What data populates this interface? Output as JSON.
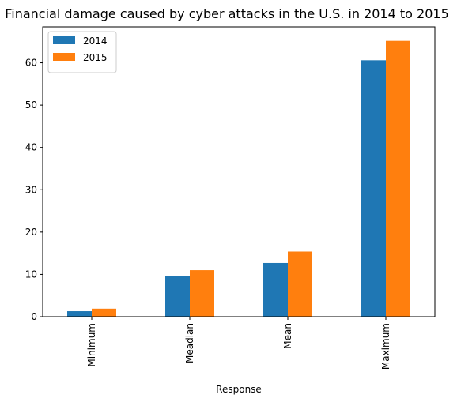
{
  "chart_data": {
    "type": "bar",
    "title": "Financial damage caused by cyber attacks in the U.S. in 2014 to 2015",
    "xlabel": "Response",
    "ylabel": "",
    "categories": [
      "Minimum",
      "Meadian",
      "Mean",
      "Maximum"
    ],
    "series": [
      {
        "name": "2014",
        "color": "#1f77b4",
        "values": [
          1.3,
          9.6,
          12.7,
          60.6
        ]
      },
      {
        "name": "2015",
        "color": "#ff7f0e",
        "values": [
          1.9,
          11.0,
          15.4,
          65.2
        ]
      }
    ],
    "ylim": [
      0,
      68.5
    ],
    "yticks": [
      0,
      10,
      20,
      30,
      40,
      50,
      60
    ],
    "grid": false,
    "legend_position": "top-left"
  }
}
